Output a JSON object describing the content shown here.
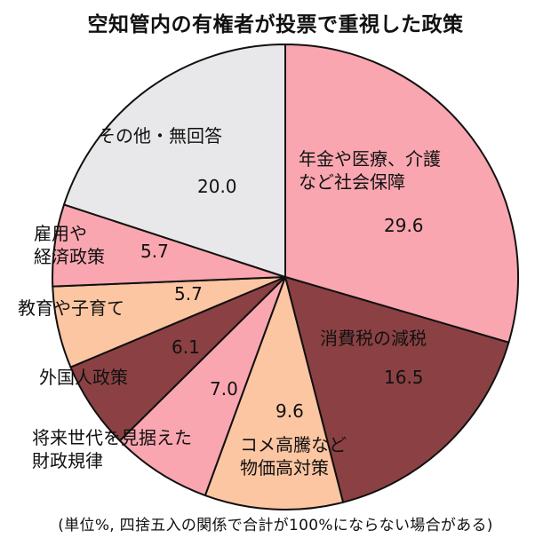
{
  "title": "空知管内の有権者が投票で重視した政策",
  "footnote": "(単位%, 四捨五入の関係で合計が100%にならない場合がある)",
  "colors": {
    "pink": "#f9a6b0",
    "brown": "#8b4143",
    "peach": "#fdc6a2",
    "gray": "#e8e8ea",
    "outline": "#111111"
  },
  "chart_data": {
    "type": "pie",
    "title": "空知管内の有権者が投票で重視した政策",
    "start": "12 o'clock, clockwise",
    "slices": [
      {
        "label": "年金や医療、介護など社会保障",
        "label_lines": [
          "年金や医療、介護",
          "など社会保障"
        ],
        "value": 29.6,
        "value_text": "29.6",
        "color": "#f9a6b0"
      },
      {
        "label": "消費税の減税",
        "label_lines": [
          "消費税の減税"
        ],
        "value": 16.5,
        "value_text": "16.5",
        "color": "#8b4143"
      },
      {
        "label": "コメ高騰など物価高対策",
        "label_lines": [
          "コメ高騰など",
          "物価高対策"
        ],
        "value": 9.6,
        "value_text": "9.6",
        "color": "#fdc6a2"
      },
      {
        "label": "将来世代を見据えた財政規律",
        "label_lines": [
          "将来世代を見据えた",
          "財政規律"
        ],
        "value": 7.0,
        "value_text": "7.0",
        "color": "#f9a6b0"
      },
      {
        "label": "外国人政策",
        "label_lines": [
          "外国人政策"
        ],
        "value": 6.1,
        "value_text": "6.1",
        "color": "#8b4143"
      },
      {
        "label": "教育や子育て",
        "label_lines": [
          "教育や子育て"
        ],
        "value": 5.7,
        "value_text": "5.7",
        "color": "#fdc6a2"
      },
      {
        "label": "雇用や経済政策",
        "label_lines": [
          "雇用や",
          "経済政策"
        ],
        "value": 5.7,
        "value_text": "5.7",
        "color": "#f9a6b0"
      },
      {
        "label": "その他・無回答",
        "label_lines": [
          "その他・無回答"
        ],
        "value": 20.0,
        "value_text": "20.0",
        "color": "#e8e8ea"
      }
    ]
  }
}
